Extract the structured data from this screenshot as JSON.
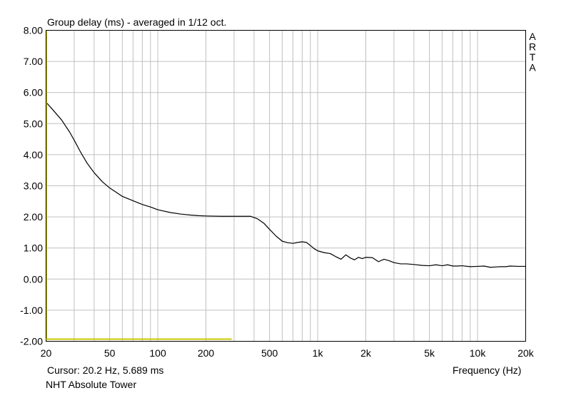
{
  "chart_data": {
    "type": "line",
    "title": "Group delay (ms) - averaged in 1/12 oct.",
    "xlabel": "Frequency (Hz)",
    "ylabel": "Group delay (ms)",
    "x_scale": "log",
    "xlim": [
      20,
      20000
    ],
    "ylim": [
      -2,
      8
    ],
    "grid": true,
    "watermark": "ARTA",
    "y_ticks": [
      8,
      7,
      6,
      5,
      4,
      3,
      2,
      1,
      0,
      -1,
      -2
    ],
    "y_tick_labels": [
      "8.00",
      "7.00",
      "6.00",
      "5.00",
      "4.00",
      "3.00",
      "2.00",
      "1.00",
      "0.00",
      "-1.00",
      "-2.00"
    ],
    "x_ticks": [
      20,
      50,
      100,
      200,
      500,
      1000,
      2000,
      5000,
      10000,
      20000
    ],
    "x_tick_labels": [
      "20",
      "50",
      "100",
      "200",
      "500",
      "1k",
      "2k",
      "5k",
      "10k",
      "20k"
    ],
    "cursor_text": "Cursor: 20.2 Hz, 5.689 ms",
    "device_label": "NHT Absolute Tower",
    "series": [
      {
        "color": "#000000",
        "x": [
          20,
          22,
          25,
          28,
          30,
          33,
          36,
          40,
          45,
          50,
          55,
          60,
          70,
          80,
          90,
          100,
          120,
          140,
          160,
          180,
          200,
          250,
          300,
          350,
          380,
          420,
          460,
          500,
          550,
          600,
          650,
          700,
          750,
          800,
          850,
          900,
          950,
          1000,
          1100,
          1200,
          1300,
          1400,
          1500,
          1600,
          1700,
          1800,
          1900,
          2000,
          2200,
          2400,
          2600,
          2800,
          3000,
          3300,
          3600,
          4000,
          4500,
          5000,
          5500,
          6000,
          6500,
          7000,
          7500,
          8000,
          9000,
          10000,
          11000,
          12000,
          13000,
          14000,
          15000,
          16000,
          18000,
          20000
        ],
        "y": [
          5.69,
          5.45,
          5.12,
          4.74,
          4.47,
          4.07,
          3.74,
          3.42,
          3.13,
          2.93,
          2.79,
          2.66,
          2.52,
          2.4,
          2.32,
          2.23,
          2.14,
          2.09,
          2.06,
          2.04,
          2.03,
          2.02,
          2.02,
          2.02,
          2.02,
          1.94,
          1.8,
          1.6,
          1.38,
          1.22,
          1.17,
          1.15,
          1.18,
          1.2,
          1.18,
          1.08,
          0.98,
          0.91,
          0.85,
          0.82,
          0.72,
          0.64,
          0.78,
          0.68,
          0.62,
          0.7,
          0.66,
          0.7,
          0.69,
          0.56,
          0.64,
          0.59,
          0.53,
          0.49,
          0.49,
          0.47,
          0.44,
          0.43,
          0.46,
          0.43,
          0.46,
          0.42,
          0.42,
          0.43,
          0.4,
          0.41,
          0.42,
          0.38,
          0.39,
          0.4,
          0.4,
          0.42,
          0.41,
          0.41
        ]
      },
      {
        "color": "#c8c800",
        "x": [
          20,
          290
        ],
        "y": [
          -1.93,
          -1.93
        ]
      }
    ]
  }
}
